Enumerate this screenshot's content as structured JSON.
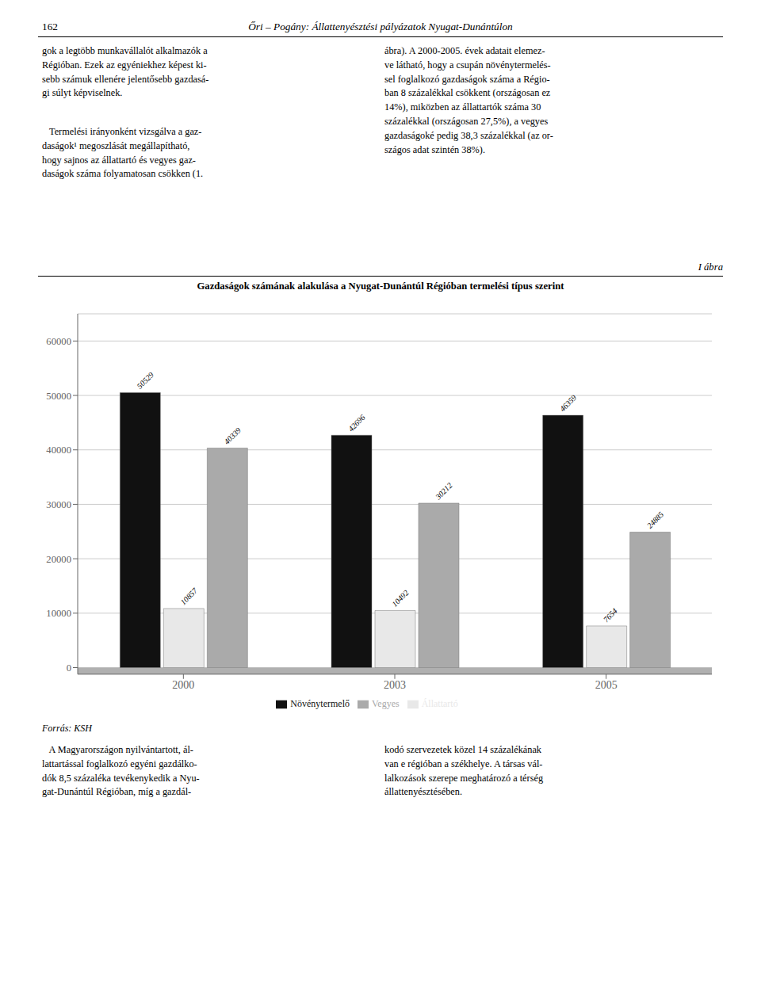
{
  "chart_data": {
    "type": "bar",
    "title": "Gazdaságok számának alakulása a Nyugat-Dunántúl Régióban termelési típus szerint",
    "categories": [
      "2000",
      "2003",
      "2005"
    ],
    "series": [
      {
        "name": "Növénytermelő",
        "color": "#111111",
        "values": [
          50529,
          42696,
          46359
        ]
      },
      {
        "name": "Állattartó",
        "color": "#e8e8e8",
        "values": [
          10857,
          10492,
          7654
        ]
      },
      {
        "name": "Vegyes",
        "color": "#aaaaaa",
        "values": [
          40339,
          30212,
          24885
        ]
      }
    ],
    "ylim": [
      -1200,
      65000
    ],
    "yticks": [
      0,
      10000,
      20000,
      30000,
      40000,
      50000,
      60000
    ],
    "grid": true,
    "legend": "bottom",
    "data_labels": true,
    "annotations": [
      "162",
      "Őri – Pogány: Állattenyésztési pályázatok Nyugat-Dunántúlon",
      "gok a legtöbb munkavállalót alkalmazók a\nRégióban. Ezek az egyéniekhez képest ki-\nsebb számuk ellenére jelentősebb gazdasá-\ngi súlyt képviselnek.",
      "   Termelési irányonként vizsgálva a gaz-\ndaságok¹ megoszlását megállapítható,\nhogy sajnos az állattartó és vegyes gaz-\ndaságok száma folyamatosan csökken (1.",
      "ábra). A 2000-2005. évek adatait elemez-\nve látható, hogy a csupán növénytermelés-\nsel foglalkozó gazdaságok száma a Régio-\nban 8 százalékkal csökkent (országosan ez\n14%), miközben az állattartók száma 30\nszázalékkal (országosan 27,5%), a vegyes\ngazdaságoké pedig 38,3 százalékkal (az or-\nszágos adat szintén 38%).",
      "I ábra",
      "Forrás: KSH",
      "   A Magyarországon nyilvántartott, ál-\nlattartással foglalkozó egyéni gazdálko-\ndók 8,5 százaléka tevékenykedik a Nyu-\ngat-Dunántúl Régióban, míg a gazdál-",
      "kodó szervezetek közel 14 százalékának\nvan e régióban a székhelye. A társas vál-\nlalkozások szerepe meghatározó a térség\nállattenyésztésében."
    ]
  }
}
